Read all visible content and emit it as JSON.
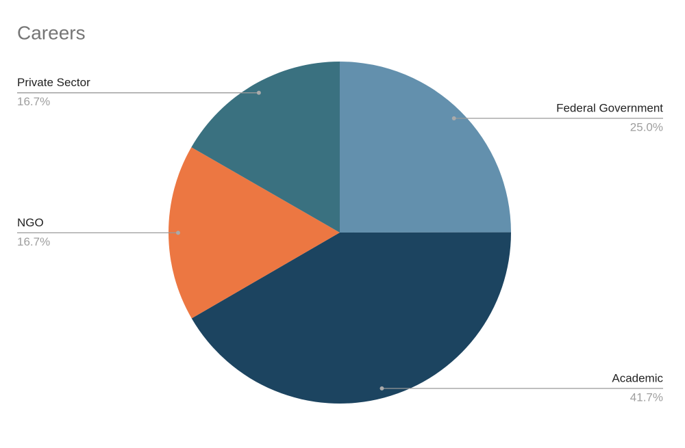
{
  "chart_data": {
    "type": "pie",
    "title": "Careers",
    "categories": [
      "Federal Government",
      "Academic",
      "NGO",
      "Private Sector"
    ],
    "values": [
      25.0,
      41.7,
      16.7,
      16.7
    ],
    "value_labels": [
      "25.0%",
      "41.7%",
      "16.7%",
      "16.7%"
    ],
    "colors": [
      "#6390ad",
      "#1c4460",
      "#ec7742",
      "#3a7180"
    ]
  }
}
